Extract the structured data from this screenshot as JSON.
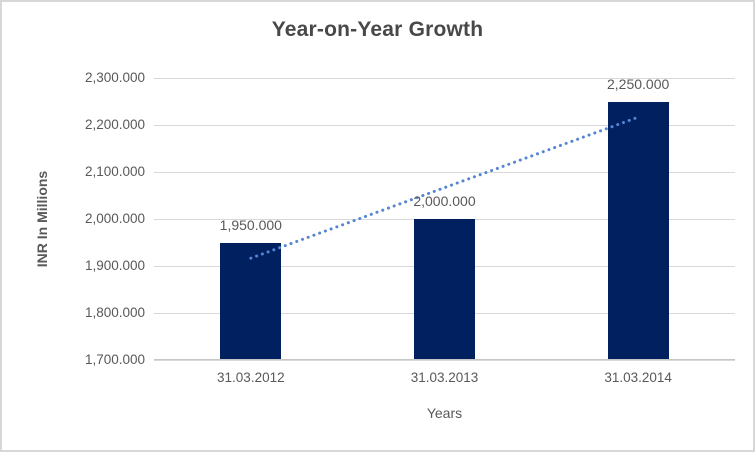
{
  "frame": {
    "background": "#ffffff",
    "border_color": "#d7d7d7"
  },
  "chart_data": {
    "type": "bar",
    "title": "Year-on-Year Growth",
    "xlabel": "Years",
    "ylabel": "INR In Millions",
    "categories": [
      "31.03.2012",
      "31.03.2013",
      "31.03.2014"
    ],
    "values": [
      1950,
      2000,
      2250
    ],
    "value_labels": [
      "1,950.000",
      "2,000.000",
      "2,250.000"
    ],
    "ylim": [
      1700,
      2300
    ],
    "ytick_step": 100,
    "ytick_labels": [
      "2,300.000",
      "2,200.000",
      "2,100.000",
      "2,000.000",
      "1,900.000",
      "1,800.000",
      "1,700.000"
    ],
    "grid": true,
    "legend": "none",
    "bar_color": "#002060",
    "text_color": "#595959",
    "grid_color": "#d9d9d9",
    "trendline": {
      "type": "linear",
      "style": "dotted",
      "color": "#5585d2",
      "endpoint_values": [
        1916.667,
        2216.667
      ]
    }
  }
}
